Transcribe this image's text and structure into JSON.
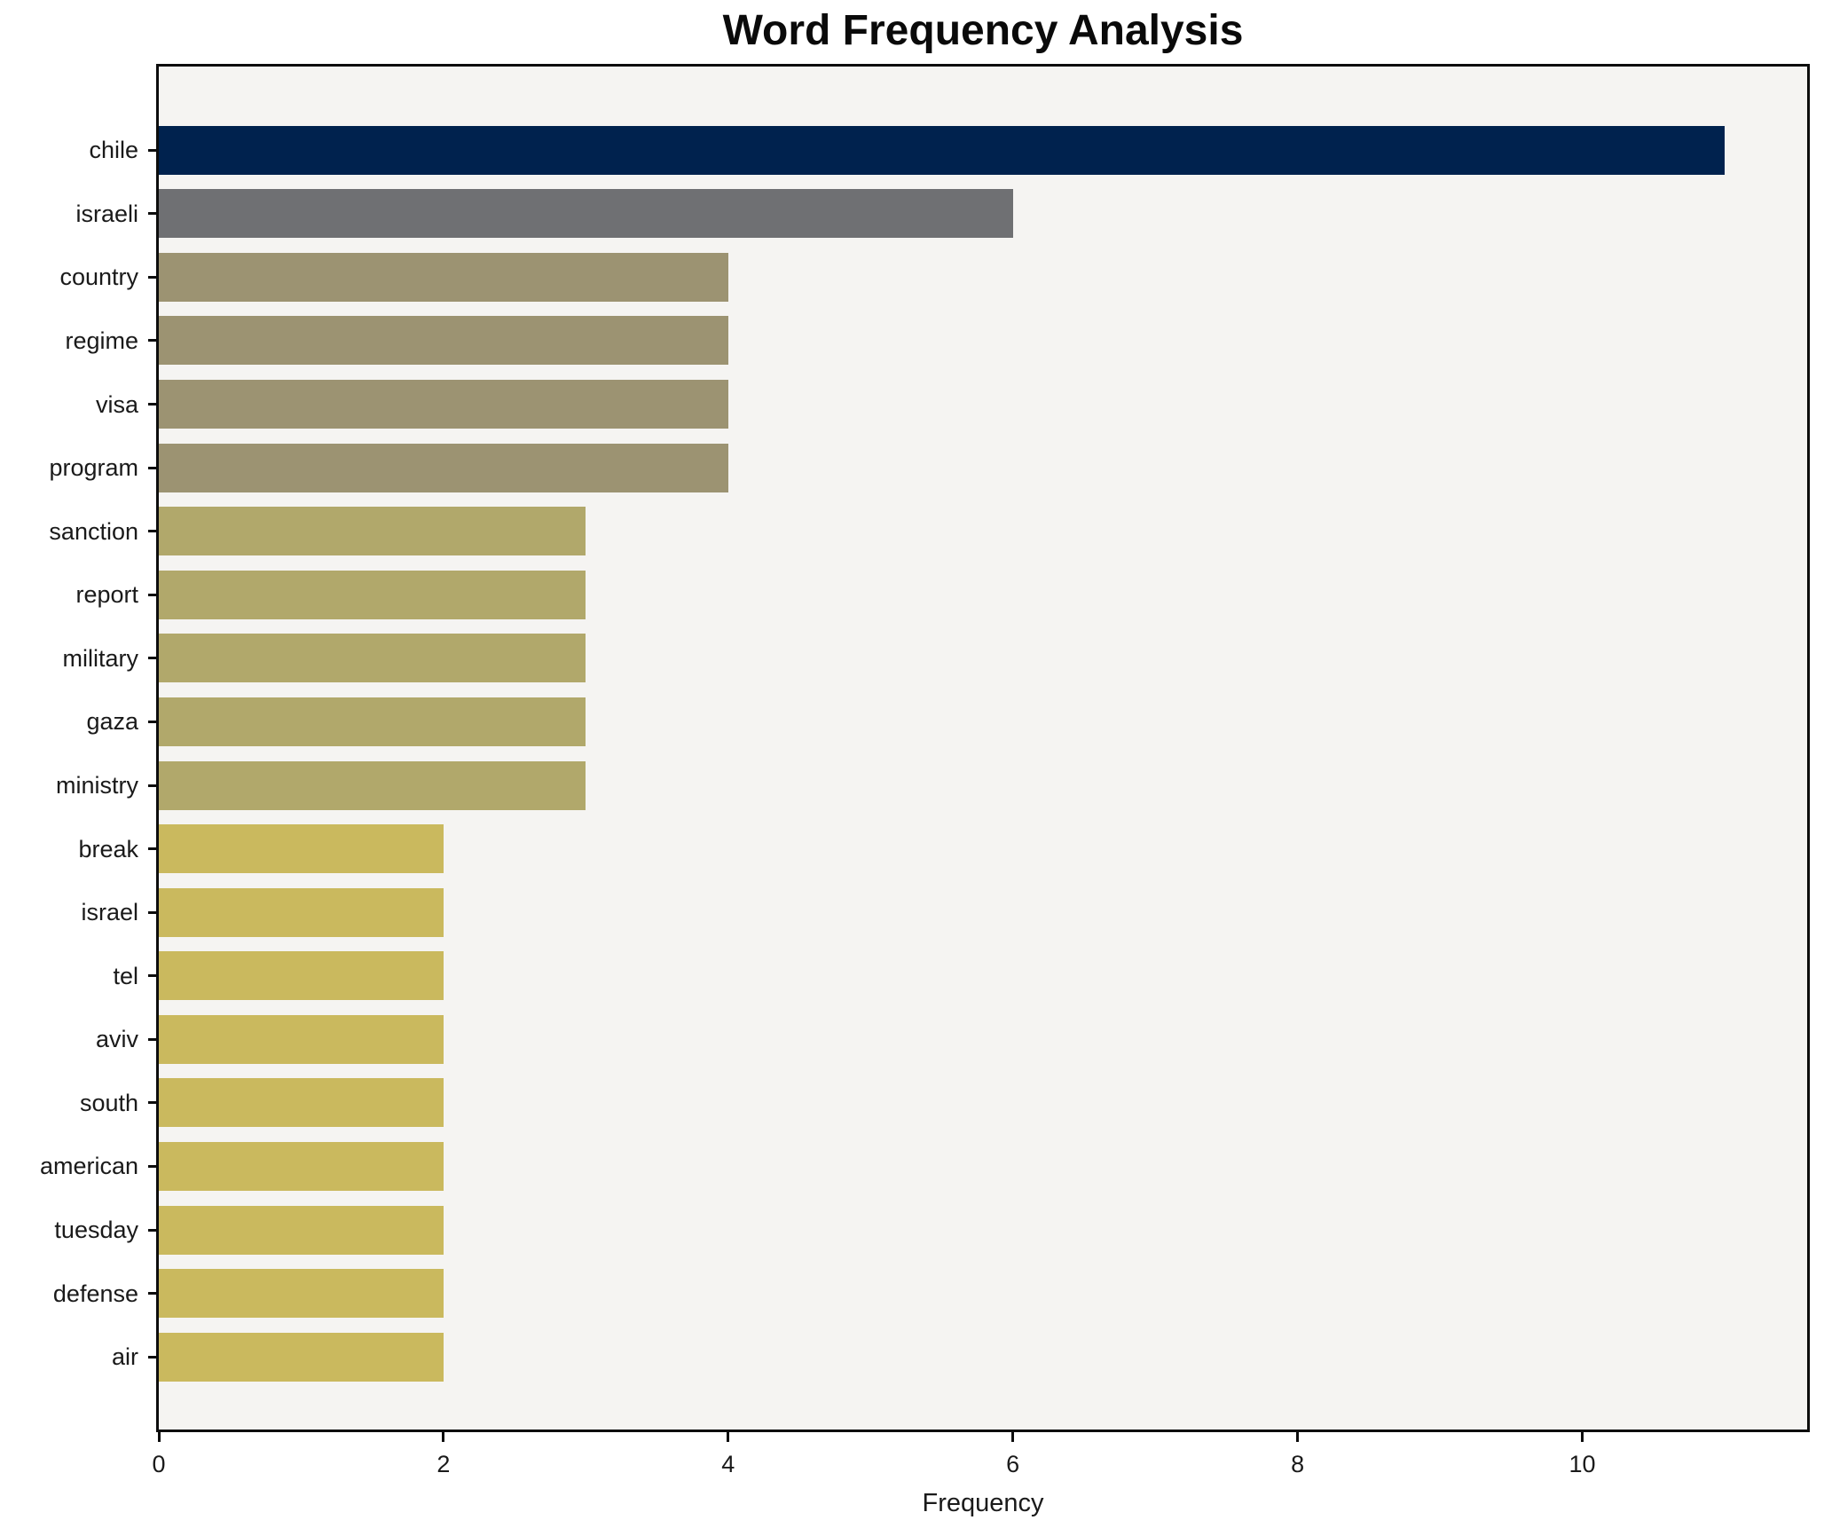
{
  "title": "Word Frequency Analysis",
  "chart_data": {
    "type": "bar",
    "orientation": "horizontal",
    "title": "Word Frequency Analysis",
    "xlabel": "Frequency",
    "ylabel": "",
    "categories": [
      "chile",
      "israeli",
      "country",
      "regime",
      "visa",
      "program",
      "sanction",
      "report",
      "military",
      "gaza",
      "ministry",
      "break",
      "israel",
      "tel",
      "aviv",
      "south",
      "american",
      "tuesday",
      "defense",
      "air"
    ],
    "values": [
      11,
      6,
      4,
      4,
      4,
      4,
      3,
      3,
      3,
      3,
      3,
      2,
      2,
      2,
      2,
      2,
      2,
      2,
      2,
      2
    ],
    "bar_colors": [
      "#00224e",
      "#6f7073",
      "#9c9372",
      "#9c9372",
      "#9c9372",
      "#9c9372",
      "#b1a86b",
      "#b1a86b",
      "#b1a86b",
      "#b1a86b",
      "#b1a86b",
      "#cab95e",
      "#cab95e",
      "#cab95e",
      "#cab95e",
      "#cab95e",
      "#cab95e",
      "#cab95e",
      "#cab95e",
      "#cab95e"
    ],
    "xlim": [
      0,
      11.58
    ],
    "xticks": [
      0,
      2,
      4,
      6,
      8,
      10
    ],
    "xtick_labels": [
      "0",
      "2",
      "4",
      "6",
      "8",
      "10"
    ],
    "grid": "off",
    "legend": "none",
    "plot_background": "#f5f4f2",
    "figure_background": "#ffffff",
    "spine_color": "#0d0d0d"
  }
}
